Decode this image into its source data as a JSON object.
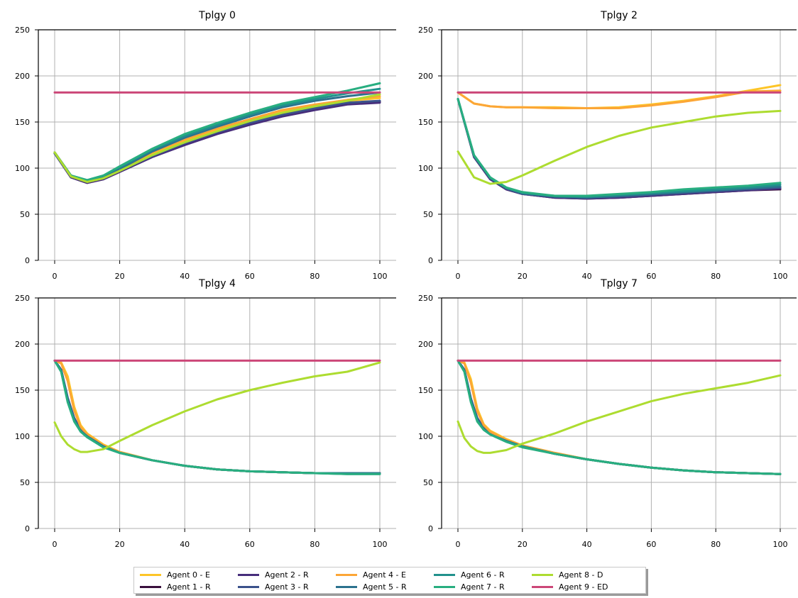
{
  "chart_data": [
    {
      "type": "line",
      "title": "Tplgy 0",
      "xlabel": "",
      "ylabel": "",
      "xlim": [
        0,
        100
      ],
      "ylim": [
        0,
        250
      ],
      "x_ticks": [
        0,
        20,
        40,
        60,
        80,
        100
      ],
      "y_ticks": [
        0,
        50,
        100,
        150,
        200,
        250
      ],
      "grid": true,
      "x": [
        0,
        5,
        10,
        15,
        20,
        30,
        40,
        50,
        60,
        70,
        80,
        90,
        100
      ],
      "series": [
        {
          "name": "Agent 0 - E",
          "values": [
            117,
            92,
            86,
            91,
            99,
            116,
            130,
            142,
            152,
            162,
            168,
            173,
            176
          ]
        },
        {
          "name": "Agent 1 - R",
          "values": [
            116,
            90,
            84,
            88,
            96,
            112,
            126,
            138,
            148,
            157,
            164,
            170,
            172
          ]
        },
        {
          "name": "Agent 2 - R",
          "values": [
            116,
            90,
            84,
            88,
            96,
            112,
            125,
            137,
            147,
            156,
            163,
            169,
            171
          ]
        },
        {
          "name": "Agent 3 - R",
          "values": [
            116,
            91,
            85,
            89,
            97,
            113,
            127,
            139,
            149,
            158,
            165,
            171,
            173
          ]
        },
        {
          "name": "Agent 4 - E",
          "values": [
            117,
            92,
            86,
            91,
            99,
            117,
            131,
            143,
            153,
            163,
            169,
            174,
            178
          ]
        },
        {
          "name": "Agent 5 - R",
          "values": [
            117,
            91,
            86,
            90,
            99,
            118,
            133,
            145,
            156,
            166,
            173,
            178,
            182
          ]
        },
        {
          "name": "Agent 6 - R",
          "values": [
            117,
            92,
            87,
            92,
            101,
            120,
            135,
            147,
            158,
            168,
            175,
            181,
            186
          ]
        },
        {
          "name": "Agent 7 - R",
          "values": [
            117,
            92,
            87,
            92,
            102,
            121,
            137,
            149,
            160,
            170,
            177,
            184,
            192
          ]
        },
        {
          "name": "Agent 8 - D",
          "values": [
            117,
            91,
            85,
            89,
            97,
            114,
            128,
            140,
            151,
            160,
            167,
            173,
            180
          ]
        },
        {
          "name": "Agent 9 - ED",
          "values": [
            182,
            182,
            182,
            182,
            182,
            182,
            182,
            182,
            182,
            182,
            182,
            182,
            182
          ]
        }
      ]
    },
    {
      "type": "line",
      "title": "Tplgy 2",
      "xlabel": "",
      "ylabel": "",
      "xlim": [
        0,
        100
      ],
      "ylim": [
        0,
        250
      ],
      "x_ticks": [
        0,
        20,
        40,
        60,
        80,
        100
      ],
      "y_ticks": [
        0,
        50,
        100,
        150,
        200,
        250
      ],
      "grid": true,
      "x": [
        0,
        5,
        10,
        15,
        20,
        30,
        40,
        50,
        60,
        70,
        80,
        90,
        100
      ],
      "series": [
        {
          "name": "Agent 0 - E",
          "values": [
            182,
            170,
            167,
            166,
            166,
            166,
            165,
            166,
            169,
            173,
            178,
            184,
            190
          ]
        },
        {
          "name": "Agent 1 - R",
          "values": [
            175,
            112,
            88,
            77,
            72,
            68,
            67,
            68,
            70,
            72,
            74,
            76,
            77
          ]
        },
        {
          "name": "Agent 2 - R",
          "values": [
            175,
            112,
            88,
            77,
            72,
            68,
            67,
            68,
            70,
            72,
            74,
            76,
            78
          ]
        },
        {
          "name": "Agent 3 - R",
          "values": [
            175,
            113,
            89,
            78,
            72,
            69,
            68,
            69,
            71,
            73,
            75,
            77,
            79
          ]
        },
        {
          "name": "Agent 4 - E",
          "values": [
            182,
            170,
            167,
            166,
            166,
            165,
            165,
            165,
            168,
            172,
            177,
            183,
            184
          ]
        },
        {
          "name": "Agent 5 - R",
          "values": [
            175,
            113,
            89,
            78,
            73,
            69,
            68,
            70,
            72,
            74,
            76,
            78,
            80
          ]
        },
        {
          "name": "Agent 6 - R",
          "values": [
            175,
            114,
            90,
            79,
            73,
            70,
            69,
            71,
            73,
            75,
            77,
            79,
            82
          ]
        },
        {
          "name": "Agent 7 - R",
          "values": [
            175,
            114,
            90,
            79,
            74,
            70,
            70,
            72,
            74,
            77,
            79,
            81,
            84
          ]
        },
        {
          "name": "Agent 8 - D",
          "values": [
            118,
            90,
            83,
            85,
            92,
            108,
            123,
            135,
            144,
            150,
            156,
            160,
            162
          ]
        },
        {
          "name": "Agent 9 - ED",
          "values": [
            182,
            182,
            182,
            182,
            182,
            182,
            182,
            182,
            182,
            182,
            182,
            182,
            182
          ]
        }
      ]
    },
    {
      "type": "line",
      "title": "Tplgy 4",
      "xlabel": "",
      "ylabel": "",
      "xlim": [
        0,
        100
      ],
      "ylim": [
        0,
        250
      ],
      "x_ticks": [
        0,
        20,
        40,
        60,
        80,
        100
      ],
      "y_ticks": [
        0,
        50,
        100,
        150,
        200,
        250
      ],
      "grid": true,
      "x": [
        0,
        2,
        4,
        6,
        8,
        10,
        15,
        20,
        30,
        40,
        50,
        60,
        70,
        80,
        90,
        100
      ],
      "series": [
        {
          "name": "Agent 0 - E",
          "values": [
            182,
            180,
            165,
            132,
            112,
            103,
            91,
            83,
            74,
            68,
            64,
            62,
            61,
            60,
            60,
            60
          ]
        },
        {
          "name": "Agent 1 - R",
          "values": [
            182,
            172,
            140,
            118,
            106,
            100,
            89,
            82,
            74,
            68,
            64,
            62,
            61,
            60,
            60,
            60
          ]
        },
        {
          "name": "Agent 2 - R",
          "values": [
            182,
            172,
            141,
            119,
            107,
            100,
            89,
            82,
            74,
            68,
            64,
            62,
            61,
            60,
            60,
            60
          ]
        },
        {
          "name": "Agent 3 - R",
          "values": [
            182,
            172,
            142,
            120,
            107,
            101,
            89,
            82,
            74,
            68,
            64,
            62,
            61,
            60,
            60,
            60
          ]
        },
        {
          "name": "Agent 4 - E",
          "values": [
            182,
            179,
            160,
            128,
            110,
            102,
            90,
            83,
            74,
            68,
            64,
            62,
            61,
            60,
            60,
            60
          ]
        },
        {
          "name": "Agent 5 - R",
          "values": [
            182,
            171,
            140,
            118,
            106,
            100,
            89,
            82,
            74,
            68,
            64,
            62,
            61,
            60,
            60,
            60
          ]
        },
        {
          "name": "Agent 6 - R",
          "values": [
            182,
            170,
            138,
            117,
            105,
            99,
            88,
            82,
            74,
            68,
            64,
            62,
            61,
            60,
            59,
            59
          ]
        },
        {
          "name": "Agent 7 - R",
          "values": [
            182,
            170,
            137,
            116,
            105,
            99,
            88,
            82,
            74,
            68,
            64,
            62,
            61,
            60,
            59,
            59
          ]
        },
        {
          "name": "Agent 8 - D",
          "values": [
            115,
            100,
            91,
            86,
            83,
            83,
            86,
            95,
            112,
            127,
            140,
            150,
            158,
            165,
            170,
            180
          ]
        },
        {
          "name": "Agent 9 - ED",
          "values": [
            182,
            182,
            182,
            182,
            182,
            182,
            182,
            182,
            182,
            182,
            182,
            182,
            182,
            182,
            182,
            182
          ]
        }
      ]
    },
    {
      "type": "line",
      "title": "Tplgy 7",
      "xlabel": "",
      "ylabel": "",
      "xlim": [
        0,
        100
      ],
      "ylim": [
        0,
        250
      ],
      "x_ticks": [
        0,
        20,
        40,
        60,
        80,
        100
      ],
      "y_ticks": [
        0,
        50,
        100,
        150,
        200,
        250
      ],
      "grid": true,
      "x": [
        0,
        2,
        4,
        6,
        8,
        10,
        15,
        20,
        30,
        40,
        50,
        60,
        70,
        80,
        90,
        100
      ],
      "series": [
        {
          "name": "Agent 0 - E",
          "values": [
            182,
            180,
            162,
            130,
            113,
            106,
            97,
            90,
            82,
            75,
            70,
            66,
            63,
            61,
            60,
            59
          ]
        },
        {
          "name": "Agent 1 - R",
          "values": [
            182,
            172,
            140,
            119,
            108,
            103,
            95,
            89,
            81,
            75,
            70,
            66,
            63,
            61,
            60,
            59
          ]
        },
        {
          "name": "Agent 2 - R",
          "values": [
            182,
            172,
            141,
            119,
            108,
            103,
            95,
            89,
            81,
            75,
            70,
            66,
            63,
            61,
            60,
            59
          ]
        },
        {
          "name": "Agent 3 - R",
          "values": [
            182,
            172,
            141,
            120,
            109,
            103,
            95,
            89,
            81,
            75,
            70,
            66,
            63,
            61,
            60,
            59
          ]
        },
        {
          "name": "Agent 4 - E",
          "values": [
            182,
            179,
            158,
            127,
            112,
            105,
            96,
            90,
            82,
            75,
            70,
            66,
            63,
            61,
            60,
            59
          ]
        },
        {
          "name": "Agent 5 - R",
          "values": [
            182,
            171,
            139,
            118,
            108,
            102,
            95,
            89,
            81,
            75,
            70,
            66,
            63,
            61,
            60,
            59
          ]
        },
        {
          "name": "Agent 6 - R",
          "values": [
            182,
            170,
            138,
            117,
            107,
            102,
            94,
            89,
            81,
            75,
            70,
            66,
            63,
            61,
            60,
            59
          ]
        },
        {
          "name": "Agent 7 - R",
          "values": [
            182,
            170,
            137,
            116,
            107,
            102,
            94,
            88,
            81,
            75,
            70,
            66,
            63,
            61,
            60,
            59
          ]
        },
        {
          "name": "Agent 8 - D",
          "values": [
            116,
            98,
            89,
            84,
            82,
            82,
            85,
            92,
            103,
            116,
            127,
            138,
            146,
            152,
            158,
            166
          ]
        },
        {
          "name": "Agent 9 - ED",
          "values": [
            182,
            182,
            182,
            182,
            182,
            182,
            182,
            182,
            182,
            182,
            182,
            182,
            182,
            182,
            182,
            182
          ]
        }
      ]
    }
  ],
  "legend": {
    "placement": "bottom-center",
    "entries": [
      {
        "name": "Agent 0 - E",
        "color": "#fdc527"
      },
      {
        "name": "Agent 1 - R",
        "color": "#3a0f3d"
      },
      {
        "name": "Agent 2 - R",
        "color": "#472d7b"
      },
      {
        "name": "Agent 3 - R",
        "color": "#3b528b"
      },
      {
        "name": "Agent 4 - E",
        "color": "#fca636"
      },
      {
        "name": "Agent 5 - R",
        "color": "#2c728e"
      },
      {
        "name": "Agent 6 - R",
        "color": "#21918c"
      },
      {
        "name": "Agent 7 - R",
        "color": "#28ae80"
      },
      {
        "name": "Agent 8 - D",
        "color": "#addc30"
      },
      {
        "name": "Agent 9 - ED",
        "color": "#cc4778"
      }
    ]
  },
  "colors": {
    "grid": "#b0b0b0",
    "axes": "#000000",
    "background": "#ffffff"
  }
}
